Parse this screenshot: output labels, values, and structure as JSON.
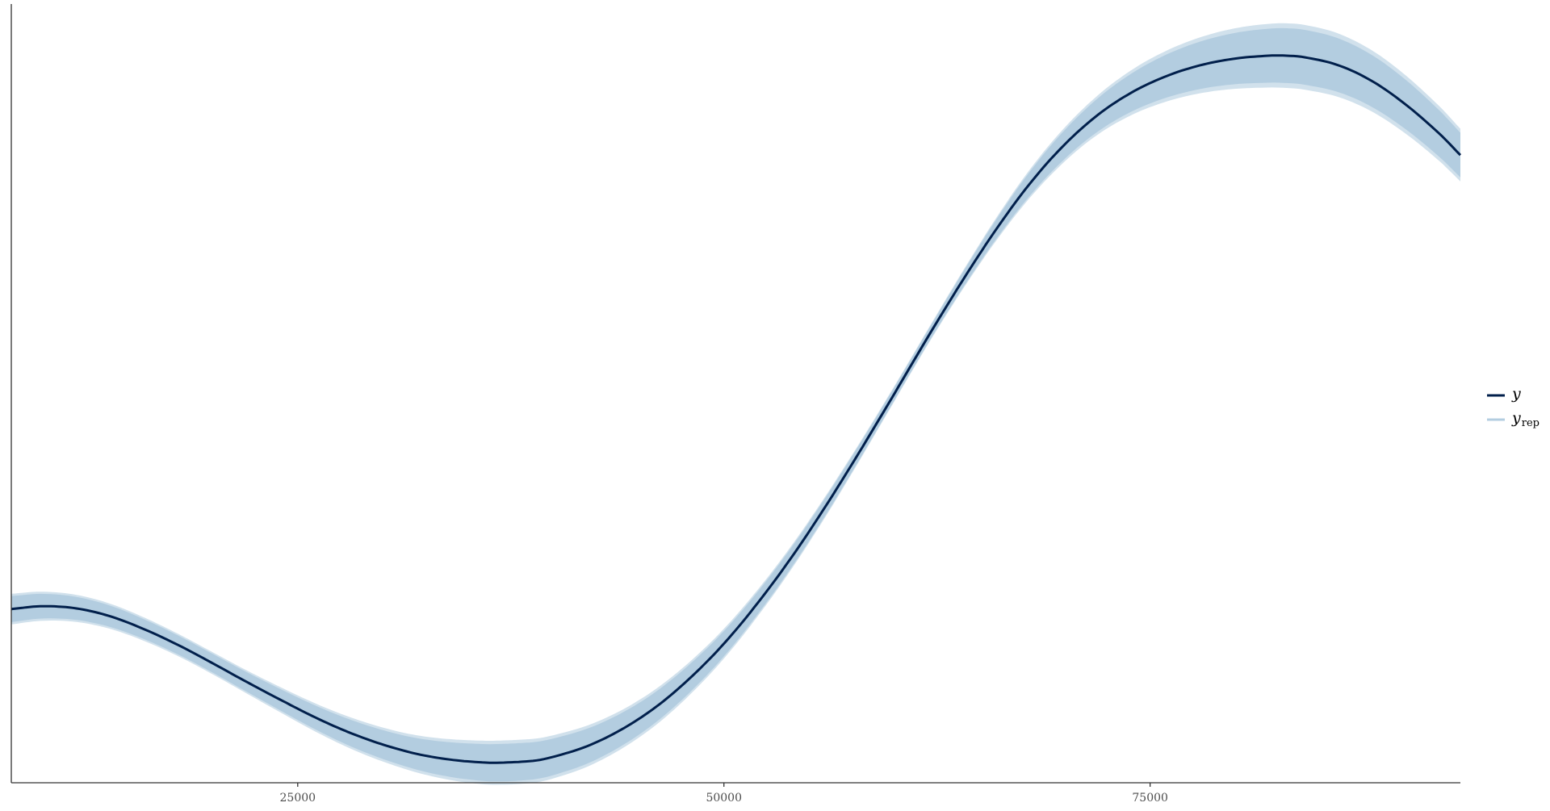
{
  "chart_data": {
    "type": "line",
    "title": "",
    "xlabel": "",
    "ylabel": "",
    "xlim": [
      8200,
      93200
    ],
    "ylim": [
      0,
      1
    ],
    "xticks": [
      25000,
      50000,
      75000
    ],
    "xtick_labels": [
      "25000",
      "50000",
      "75000"
    ],
    "yticks": [],
    "grid": false,
    "legend_position": "right",
    "colors": {
      "y": "#011f4b",
      "yrep": "#b3cde0",
      "yrep_edge": "#d1e1ec",
      "axis": "#333333",
      "tick_text": "#4d4d4d"
    },
    "legend": {
      "y_label": "y",
      "yrep_main": "y",
      "yrep_sub": "rep"
    },
    "series": [
      {
        "name": "y",
        "x": [
          8200,
          10000,
          12000,
          14000,
          16000,
          18000,
          20000,
          22000,
          24000,
          26000,
          28000,
          30000,
          32000,
          34000,
          36000,
          37000,
          38000,
          39000,
          40000,
          42000,
          44000,
          46000,
          48000,
          50000,
          52000,
          54000,
          56000,
          58000,
          60000,
          62000,
          64000,
          66000,
          68000,
          70000,
          72000,
          74000,
          76000,
          78000,
          80000,
          82000,
          83000,
          84000,
          86000,
          88000,
          90000,
          92000,
          93200
        ],
        "values": [
          0.213,
          0.217,
          0.214,
          0.203,
          0.185,
          0.163,
          0.138,
          0.112,
          0.087,
          0.063,
          0.042,
          0.025,
          0.012,
          0.004,
          0.0,
          0.0,
          0.001,
          0.003,
          0.008,
          0.023,
          0.046,
          0.077,
          0.117,
          0.165,
          0.222,
          0.286,
          0.357,
          0.433,
          0.512,
          0.592,
          0.669,
          0.741,
          0.805,
          0.858,
          0.9,
          0.931,
          0.953,
          0.968,
          0.977,
          0.981,
          0.981,
          0.979,
          0.968,
          0.946,
          0.913,
          0.872,
          0.843
        ]
      }
    ],
    "yrep_band_halfwidth": {
      "x": [
        8200,
        20000,
        30000,
        37000,
        45000,
        55000,
        62000,
        70000,
        78000,
        83000,
        88000,
        93200
      ],
      "values": [
        0.018,
        0.013,
        0.02,
        0.026,
        0.022,
        0.013,
        0.009,
        0.02,
        0.033,
        0.038,
        0.036,
        0.031
      ]
    }
  }
}
